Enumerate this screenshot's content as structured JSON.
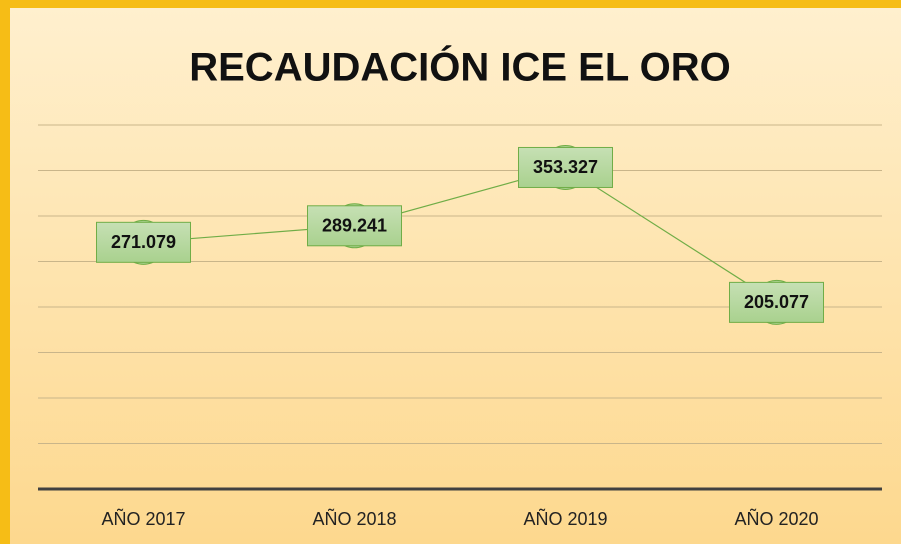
{
  "chart_data": {
    "type": "line",
    "title": "RECAUDACIÓN ICE EL ORO",
    "categories": [
      "AÑO 2017",
      "AÑO 2018",
      "AÑO 2019",
      "AÑO 2020"
    ],
    "series": [
      {
        "color": "#70ad47",
        "values": [
          271079,
          289241,
          353327,
          205077
        ],
        "value_labels": [
          "271.079",
          "289.241",
          "353.327",
          "205.077"
        ]
      }
    ],
    "ylim": [
      0,
      400000
    ],
    "yticks": [
      0,
      50000,
      100000,
      150000,
      200000,
      250000,
      300000,
      350000,
      400000
    ],
    "grid": true
  }
}
